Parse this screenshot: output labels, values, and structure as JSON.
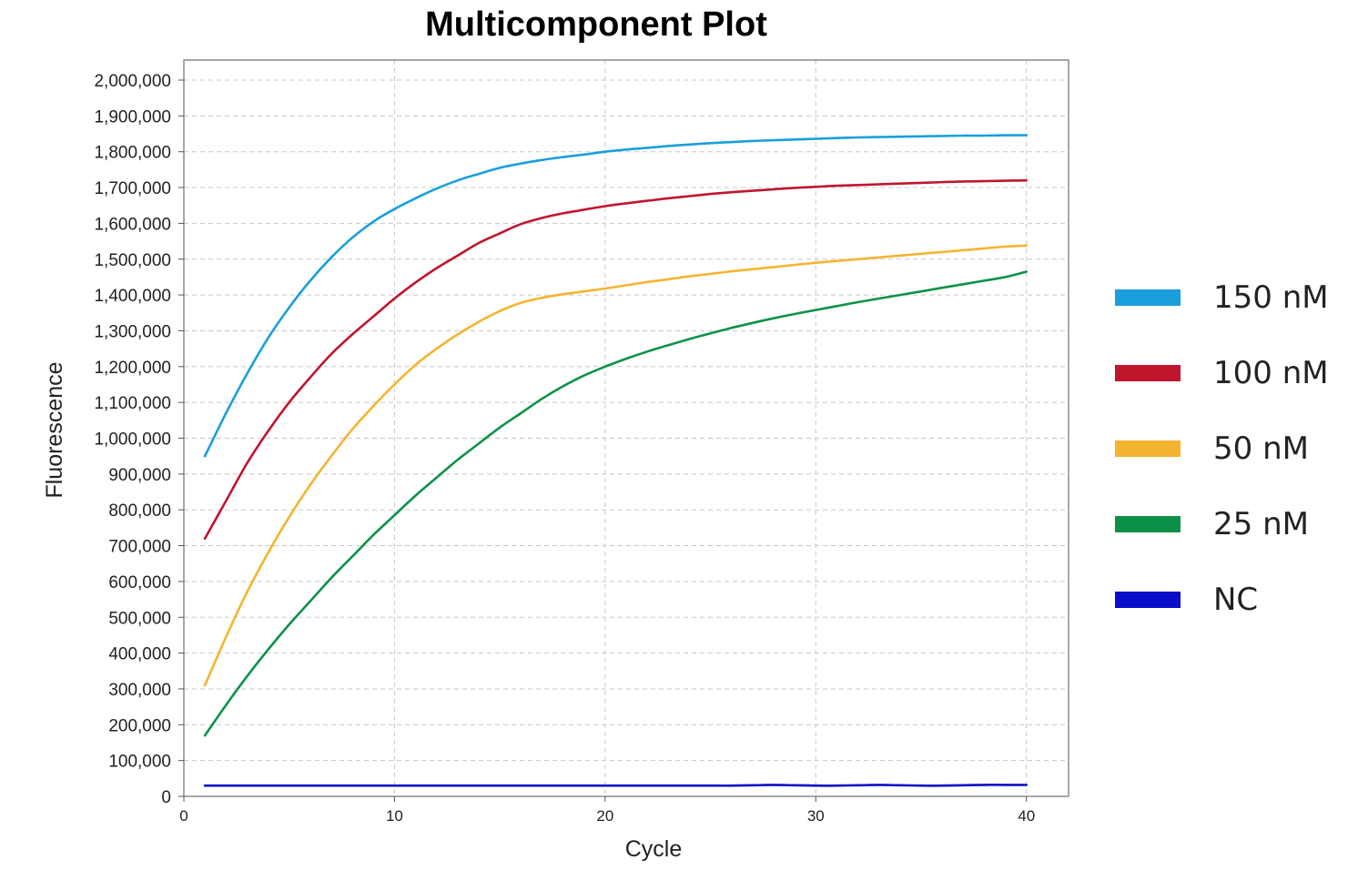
{
  "chart_data": {
    "type": "line",
    "title": "Multicomponent Plot",
    "xlabel": "Cycle",
    "ylabel": "Fluorescence",
    "xlim": [
      0,
      42
    ],
    "ylim": [
      0,
      2050000
    ],
    "grid": true,
    "legend_position": "right",
    "x_ticks": [
      0,
      10,
      20,
      30,
      40
    ],
    "x_tick_labels": [
      "0",
      "10",
      "20",
      "30",
      "40"
    ],
    "y_ticks": [
      0,
      100000,
      200000,
      300000,
      400000,
      500000,
      600000,
      700000,
      800000,
      900000,
      1000000,
      1100000,
      1200000,
      1300000,
      1400000,
      1500000,
      1600000,
      1700000,
      1800000,
      1900000,
      2000000
    ],
    "y_tick_labels": [
      "0",
      "100,000",
      "200,000",
      "300,000",
      "400,000",
      "500,000",
      "600,000",
      "700,000",
      "800,000",
      "900,000",
      "1,000,000",
      "1,100,000",
      "1,200,000",
      "1,300,000",
      "1,400,000",
      "1,500,000",
      "1,600,000",
      "1,700,000",
      "1,800,000",
      "1,900,000",
      "2,000,000"
    ],
    "x": [
      1,
      2,
      3,
      4,
      5,
      6,
      7,
      8,
      9,
      10,
      11,
      12,
      13,
      14,
      15,
      16,
      17,
      18,
      19,
      20,
      21,
      22,
      23,
      24,
      25,
      26,
      27,
      28,
      29,
      30,
      31,
      32,
      33,
      34,
      35,
      36,
      37,
      38,
      39,
      40
    ],
    "series": [
      {
        "name": "150 nM",
        "color": "#1a9fdc",
        "values": [
          950000,
          1070000,
          1180000,
          1280000,
          1365000,
          1440000,
          1505000,
          1560000,
          1605000,
          1640000,
          1670000,
          1697000,
          1720000,
          1738000,
          1755000,
          1767000,
          1777000,
          1785000,
          1792000,
          1800000,
          1806000,
          1811000,
          1816000,
          1820000,
          1824000,
          1827000,
          1830000,
          1832000,
          1834000,
          1836000,
          1838000,
          1840000,
          1841000,
          1842000,
          1843000,
          1844000,
          1845000,
          1845000,
          1846000,
          1846000
        ]
      },
      {
        "name": "100 nM",
        "color": "#c0152d",
        "values": [
          720000,
          825000,
          930000,
          1020000,
          1100000,
          1170000,
          1235000,
          1290000,
          1340000,
          1390000,
          1435000,
          1475000,
          1510000,
          1545000,
          1572000,
          1598000,
          1615000,
          1628000,
          1638000,
          1648000,
          1656000,
          1663000,
          1670000,
          1676000,
          1682000,
          1687000,
          1691000,
          1695000,
          1699000,
          1702000,
          1705000,
          1707000,
          1709000,
          1711000,
          1713000,
          1715000,
          1717000,
          1718000,
          1719000,
          1720000
        ]
      },
      {
        "name": "50 nM",
        "color": "#f5b430",
        "values": [
          310000,
          445000,
          570000,
          680000,
          780000,
          870000,
          950000,
          1025000,
          1090000,
          1150000,
          1205000,
          1250000,
          1290000,
          1325000,
          1355000,
          1378000,
          1392000,
          1402000,
          1410000,
          1418000,
          1427000,
          1436000,
          1444000,
          1452000,
          1459000,
          1466000,
          1472000,
          1478000,
          1484000,
          1490000,
          1495000,
          1500000,
          1505000,
          1510000,
          1515000,
          1520000,
          1525000,
          1530000,
          1535000,
          1538000
        ]
      },
      {
        "name": "25 nM",
        "color": "#0c9248",
        "values": [
          170000,
          255000,
          335000,
          410000,
          480000,
          545000,
          610000,
          670000,
          730000,
          785000,
          840000,
          890000,
          940000,
          985000,
          1030000,
          1070000,
          1110000,
          1145000,
          1175000,
          1200000,
          1222000,
          1242000,
          1260000,
          1277000,
          1293000,
          1308000,
          1322000,
          1335000,
          1347000,
          1358000,
          1369000,
          1380000,
          1390000,
          1400000,
          1410000,
          1420000,
          1430000,
          1440000,
          1450000,
          1465000
        ]
      },
      {
        "name": "NC",
        "color": "#0a0ec8",
        "values": [
          30000,
          30000,
          30000,
          30000,
          30000,
          30000,
          30000,
          30000,
          30000,
          30000,
          30000,
          30000,
          30000,
          30000,
          30000,
          30000,
          30000,
          30000,
          30000,
          30000,
          30000,
          30000,
          30000,
          30000,
          30000,
          30000,
          31000,
          32000,
          31000,
          30000,
          30000,
          31000,
          32000,
          31000,
          30000,
          30000,
          31000,
          32000,
          32000,
          32000
        ]
      }
    ]
  }
}
